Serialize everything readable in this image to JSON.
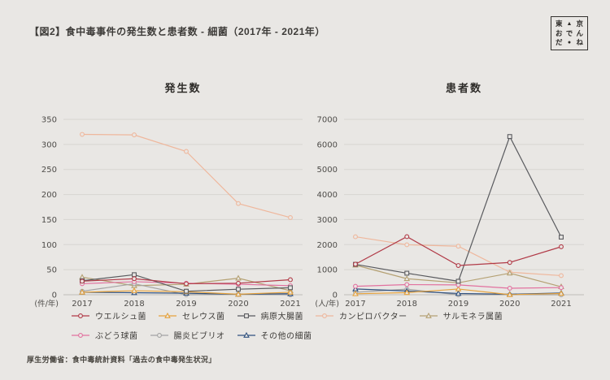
{
  "page": {
    "background": "#e9e7e4"
  },
  "header": {
    "title": "【図2】食中毒事件の発生数と患者数 - 細菌（2017年 - 2021年）"
  },
  "logo": {
    "name": "東京おでんだね",
    "rows": [
      "東▲京",
      "おでん",
      "だ●ね"
    ]
  },
  "source": "厚生労働省：食中毒統計資料「過去の食中毒発生状況」",
  "chart_data": [
    {
      "type": "line",
      "title": "発生数",
      "unit_label": "(件/年)",
      "categories": [
        "2017",
        "2018",
        "2019",
        "2020",
        "2021"
      ],
      "ylim": [
        0,
        350
      ],
      "ytick_step": 50,
      "grid": true,
      "legend_position": "bottom",
      "series": [
        {
          "name": "ウエルシュ菌",
          "color": "#b13a47",
          "marker": "circle",
          "values": [
            27,
            32,
            22,
            23,
            30
          ]
        },
        {
          "name": "セレウス菌",
          "color": "#e6a23c",
          "marker": "triangle",
          "values": [
            5,
            8,
            6,
            1,
            5
          ]
        },
        {
          "name": "病原大腸菌",
          "color": "#595a5e",
          "marker": "square",
          "values": [
            28,
            40,
            7,
            11,
            14
          ]
        },
        {
          "name": "カンピロバクター",
          "color": "#efb79c",
          "marker": "circle",
          "values": [
            320,
            319,
            286,
            182,
            154
          ]
        },
        {
          "name": "サルモネラ属菌",
          "color": "#b5a173",
          "marker": "triangle",
          "values": [
            35,
            18,
            21,
            33,
            8
          ]
        },
        {
          "name": "ぶどう球菌",
          "color": "#e2719f",
          "marker": "circle",
          "values": [
            22,
            26,
            23,
            21,
            18
          ]
        },
        {
          "name": "腸炎ビブリオ",
          "color": "#a3a3a3",
          "marker": "circle",
          "values": [
            7,
            22,
            0,
            1,
            0
          ]
        },
        {
          "name": "その他の細菌",
          "color": "#30517f",
          "marker": "triangle",
          "values": [
            5,
            4,
            3,
            1,
            2
          ]
        }
      ]
    },
    {
      "type": "line",
      "title": "患者数",
      "unit_label": "(人/年)",
      "categories": [
        "2017",
        "2018",
        "2019",
        "2020",
        "2021"
      ],
      "ylim": [
        0,
        7000
      ],
      "ytick_step": 1000,
      "grid": true,
      "legend_position": "bottom",
      "series": [
        {
          "name": "ウエルシュ菌",
          "color": "#b13a47",
          "marker": "circle",
          "values": [
            1220,
            2319,
            1166,
            1288,
            1916
          ]
        },
        {
          "name": "セレウス菌",
          "color": "#e6a23c",
          "marker": "triangle",
          "values": [
            38,
            86,
            229,
            4,
            51
          ]
        },
        {
          "name": "病原大腸菌",
          "color": "#595a5e",
          "marker": "square",
          "values": [
            1214,
            860,
            538,
            6314,
            2300
          ]
        },
        {
          "name": "カンピロバクター",
          "color": "#efb79c",
          "marker": "circle",
          "values": [
            2315,
            1995,
            1937,
            901,
            764
          ]
        },
        {
          "name": "サルモネラ属菌",
          "color": "#b5a173",
          "marker": "triangle",
          "values": [
            1183,
            640,
            476,
            861,
            318
          ]
        },
        {
          "name": "ぶどう球菌",
          "color": "#e2719f",
          "marker": "circle",
          "values": [
            336,
            405,
            393,
            260,
            285
          ]
        },
        {
          "name": "腸炎ビブリオ",
          "color": "#a3a3a3",
          "marker": "circle",
          "values": [
            97,
            222,
            0,
            3,
            0
          ]
        },
        {
          "name": "その他の細菌",
          "color": "#30517f",
          "marker": "triangle",
          "values": [
            230,
            150,
            50,
            20,
            70
          ]
        }
      ]
    }
  ]
}
